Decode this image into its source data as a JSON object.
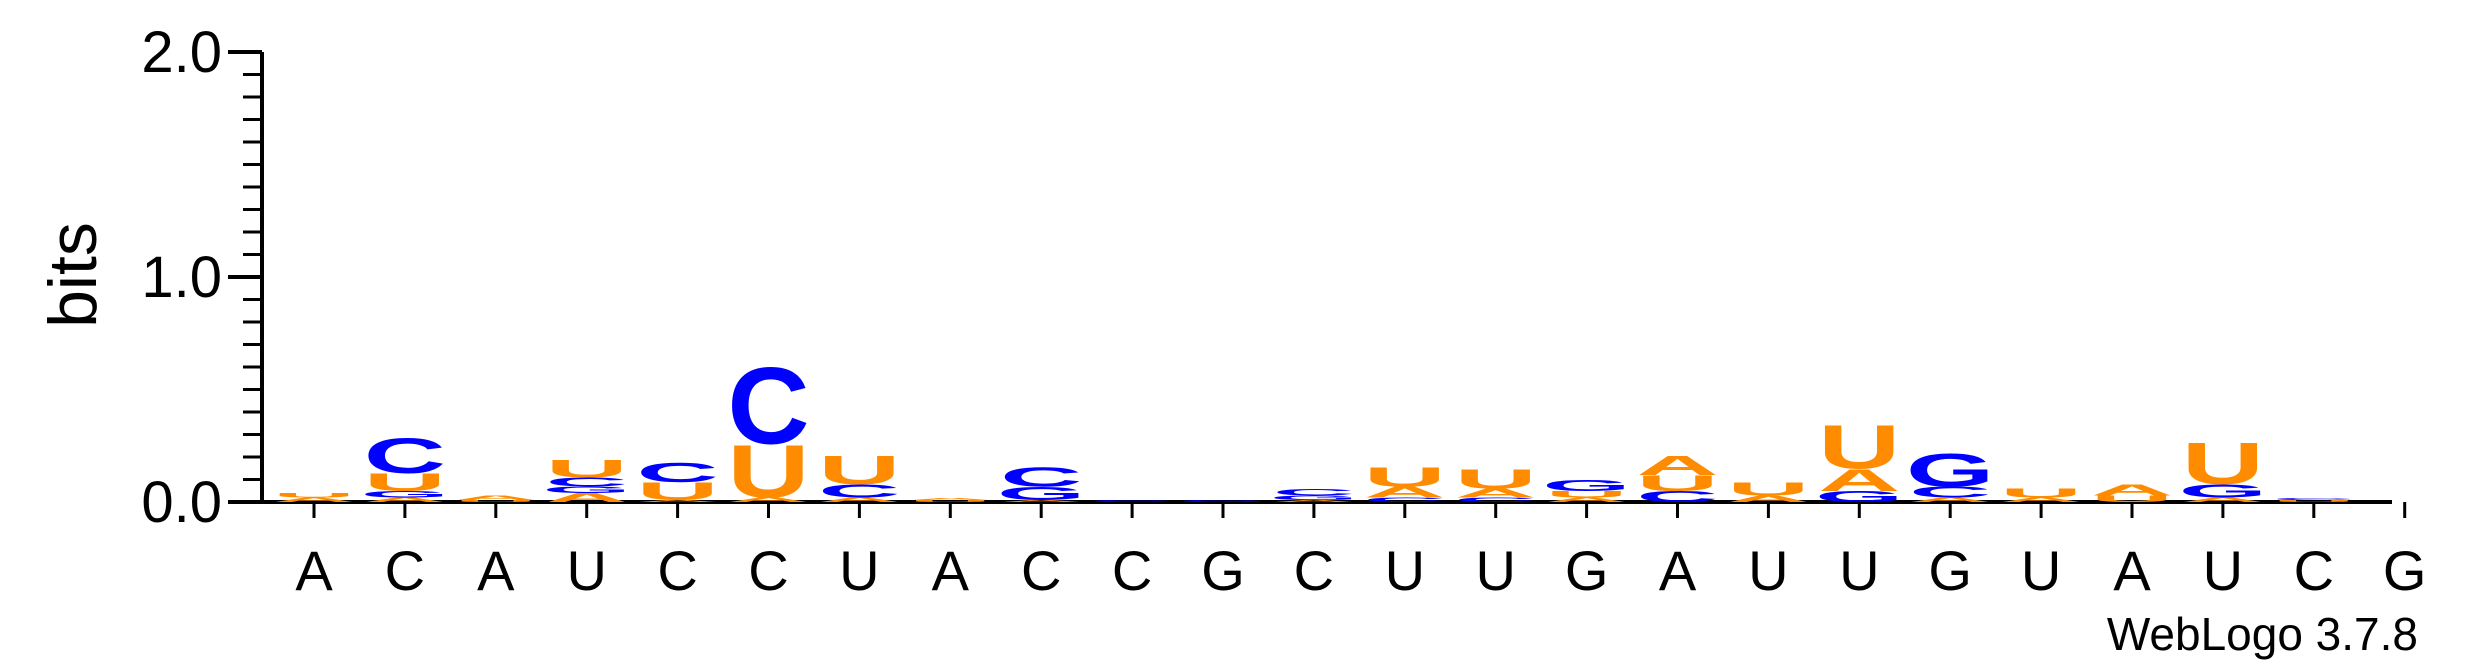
{
  "chart_data": {
    "type": "sequence-logo",
    "ylabel": "bits",
    "ylim": [
      0,
      2.0
    ],
    "yticks": [
      "0.0",
      "1.0",
      "2.0"
    ],
    "credit": "WebLogo 3.7.8",
    "colors": {
      "A": "#ff8c00",
      "U": "#ff8c00",
      "C": "#0000ff",
      "G": "#0000ff"
    },
    "positions": [
      {
        "label": "A",
        "stack": [
          {
            "letter": "A",
            "bits": 0.02
          },
          {
            "letter": "U",
            "bits": 0.02
          }
        ]
      },
      {
        "label": "C",
        "stack": [
          {
            "letter": "A",
            "bits": 0.02
          },
          {
            "letter": "G",
            "bits": 0.03
          },
          {
            "letter": "U",
            "bits": 0.08
          },
          {
            "letter": "C",
            "bits": 0.16
          }
        ]
      },
      {
        "label": "A",
        "stack": [
          {
            "letter": "U",
            "bits": 0.01
          },
          {
            "letter": "A",
            "bits": 0.02
          }
        ]
      },
      {
        "label": "U",
        "stack": [
          {
            "letter": "A",
            "bits": 0.04
          },
          {
            "letter": "G",
            "bits": 0.03
          },
          {
            "letter": "C",
            "bits": 0.04
          },
          {
            "letter": "U",
            "bits": 0.08
          }
        ]
      },
      {
        "label": "C",
        "stack": [
          {
            "letter": "A",
            "bits": 0.01
          },
          {
            "letter": "U",
            "bits": 0.08
          },
          {
            "letter": "C",
            "bits": 0.09
          }
        ]
      },
      {
        "label": "C",
        "stack": [
          {
            "letter": "A",
            "bits": 0.02
          },
          {
            "letter": "U",
            "bits": 0.24
          },
          {
            "letter": "C",
            "bits": 0.35
          }
        ]
      },
      {
        "label": "U",
        "stack": [
          {
            "letter": "A",
            "bits": 0.02
          },
          {
            "letter": "C",
            "bits": 0.06
          },
          {
            "letter": "U",
            "bits": 0.13
          }
        ]
      },
      {
        "label": "A",
        "stack": [
          {
            "letter": "U",
            "bits": 0.01
          },
          {
            "letter": "A",
            "bits": 0.01
          }
        ]
      },
      {
        "label": "C",
        "stack": [
          {
            "letter": "A",
            "bits": 0.01
          },
          {
            "letter": "G",
            "bits": 0.06
          },
          {
            "letter": "C",
            "bits": 0.09
          }
        ]
      },
      {
        "label": "C",
        "stack": [
          {
            "letter": "C",
            "bits": 0.01
          }
        ]
      },
      {
        "label": "G",
        "stack": [
          {
            "letter": "G",
            "bits": 0.01
          }
        ]
      },
      {
        "label": "C",
        "stack": [
          {
            "letter": "A",
            "bits": 0.01
          },
          {
            "letter": "G",
            "bits": 0.02
          },
          {
            "letter": "C",
            "bits": 0.03
          }
        ]
      },
      {
        "label": "U",
        "stack": [
          {
            "letter": "C",
            "bits": 0.02
          },
          {
            "letter": "A",
            "bits": 0.05
          },
          {
            "letter": "U",
            "bits": 0.09
          }
        ]
      },
      {
        "label": "U",
        "stack": [
          {
            "letter": "C",
            "bits": 0.02
          },
          {
            "letter": "A",
            "bits": 0.04
          },
          {
            "letter": "U",
            "bits": 0.09
          }
        ]
      },
      {
        "label": "G",
        "stack": [
          {
            "letter": "A",
            "bits": 0.02
          },
          {
            "letter": "U",
            "bits": 0.03
          },
          {
            "letter": "G",
            "bits": 0.05
          }
        ]
      },
      {
        "label": "A",
        "stack": [
          {
            "letter": "C",
            "bits": 0.05
          },
          {
            "letter": "U",
            "bits": 0.07
          },
          {
            "letter": "A",
            "bits": 0.09
          }
        ]
      },
      {
        "label": "U",
        "stack": [
          {
            "letter": "A",
            "bits": 0.03
          },
          {
            "letter": "U",
            "bits": 0.06
          }
        ]
      },
      {
        "label": "U",
        "stack": [
          {
            "letter": "G",
            "bits": 0.05
          },
          {
            "letter": "A",
            "bits": 0.1
          },
          {
            "letter": "U",
            "bits": 0.2
          }
        ]
      },
      {
        "label": "G",
        "stack": [
          {
            "letter": "A",
            "bits": 0.02
          },
          {
            "letter": "C",
            "bits": 0.05
          },
          {
            "letter": "G",
            "bits": 0.15
          }
        ]
      },
      {
        "label": "U",
        "stack": [
          {
            "letter": "A",
            "bits": 0.02
          },
          {
            "letter": "U",
            "bits": 0.04
          }
        ]
      },
      {
        "label": "A",
        "stack": [
          {
            "letter": "U",
            "bits": 0.03
          },
          {
            "letter": "A",
            "bits": 0.05
          }
        ]
      },
      {
        "label": "U",
        "stack": [
          {
            "letter": "A",
            "bits": 0.02
          },
          {
            "letter": "G",
            "bits": 0.06
          },
          {
            "letter": "U",
            "bits": 0.19
          }
        ]
      },
      {
        "label": "C",
        "stack": [
          {
            "letter": "U",
            "bits": 0.01
          },
          {
            "letter": "C",
            "bits": 0.01
          }
        ]
      },
      {
        "label": "G",
        "stack": []
      }
    ]
  }
}
